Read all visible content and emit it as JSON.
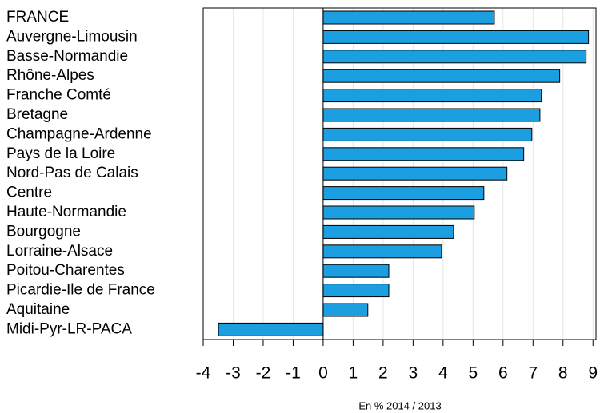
{
  "chart_data": {
    "type": "bar",
    "orientation": "horizontal",
    "xlabel": "En % 2014 / 2013",
    "categories": [
      "FRANCE",
      "Auvergne-Limousin",
      "Basse-Normandie",
      "Rhône-Alpes",
      "Franche Comté",
      "Bretagne",
      "Champagne-Ardenne",
      "Pays de la Loire",
      "Nord-Pas de Calais",
      "Centre",
      "Haute-Normandie",
      "Bourgogne",
      "Lorraine-Alsace",
      "Poitou-Charentes",
      "Picardie-Ile de France",
      "Aquitaine",
      "Midi-Pyr-LR-PACA"
    ],
    "values": [
      5.71,
      8.85,
      8.77,
      7.89,
      7.28,
      7.23,
      6.96,
      6.69,
      6.13,
      5.36,
      5.04,
      4.35,
      3.95,
      2.19,
      2.19,
      1.49,
      -3.49
    ],
    "color": "#1b9fe0",
    "xlim": [
      -4,
      9.1
    ],
    "xticks": [
      -4,
      -3,
      -2,
      -1,
      0,
      1,
      2,
      3,
      4,
      5,
      6,
      7,
      8,
      9
    ],
    "grid": true
  }
}
